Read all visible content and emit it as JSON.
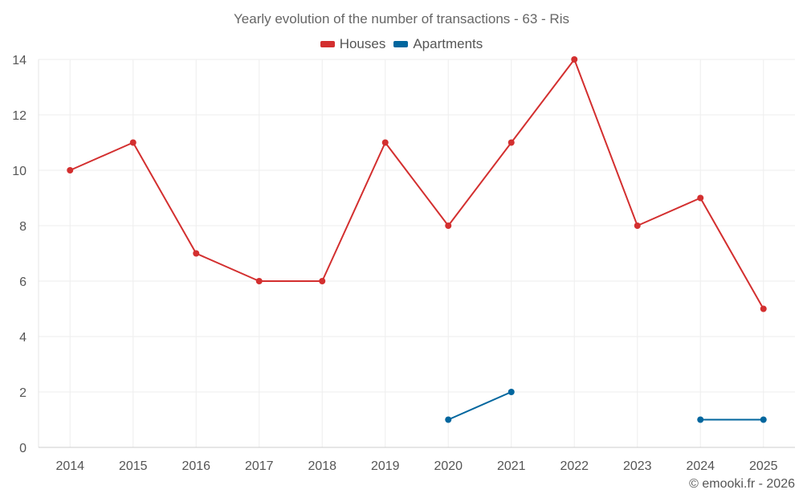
{
  "chart_data": {
    "type": "line",
    "title": "Yearly evolution of the number of transactions - 63 - Ris",
    "xlabel": "",
    "ylabel": "",
    "categories": [
      "2014",
      "2015",
      "2016",
      "2017",
      "2018",
      "2019",
      "2020",
      "2021",
      "2022",
      "2023",
      "2024",
      "2025"
    ],
    "ylim": [
      0,
      14
    ],
    "yticks": [
      0,
      2,
      4,
      6,
      8,
      10,
      12,
      14
    ],
    "grid": true,
    "legend_position": "top-center",
    "series": [
      {
        "name": "Houses",
        "color": "#d32f2f",
        "values": [
          10,
          11,
          7,
          6,
          6,
          11,
          8,
          11,
          14,
          8,
          9,
          5
        ]
      },
      {
        "name": "Apartments",
        "color": "#01669e",
        "values": [
          null,
          null,
          null,
          null,
          null,
          null,
          1,
          2,
          null,
          null,
          1,
          1
        ]
      }
    ]
  },
  "credit": "© emooki.fr - 2026"
}
